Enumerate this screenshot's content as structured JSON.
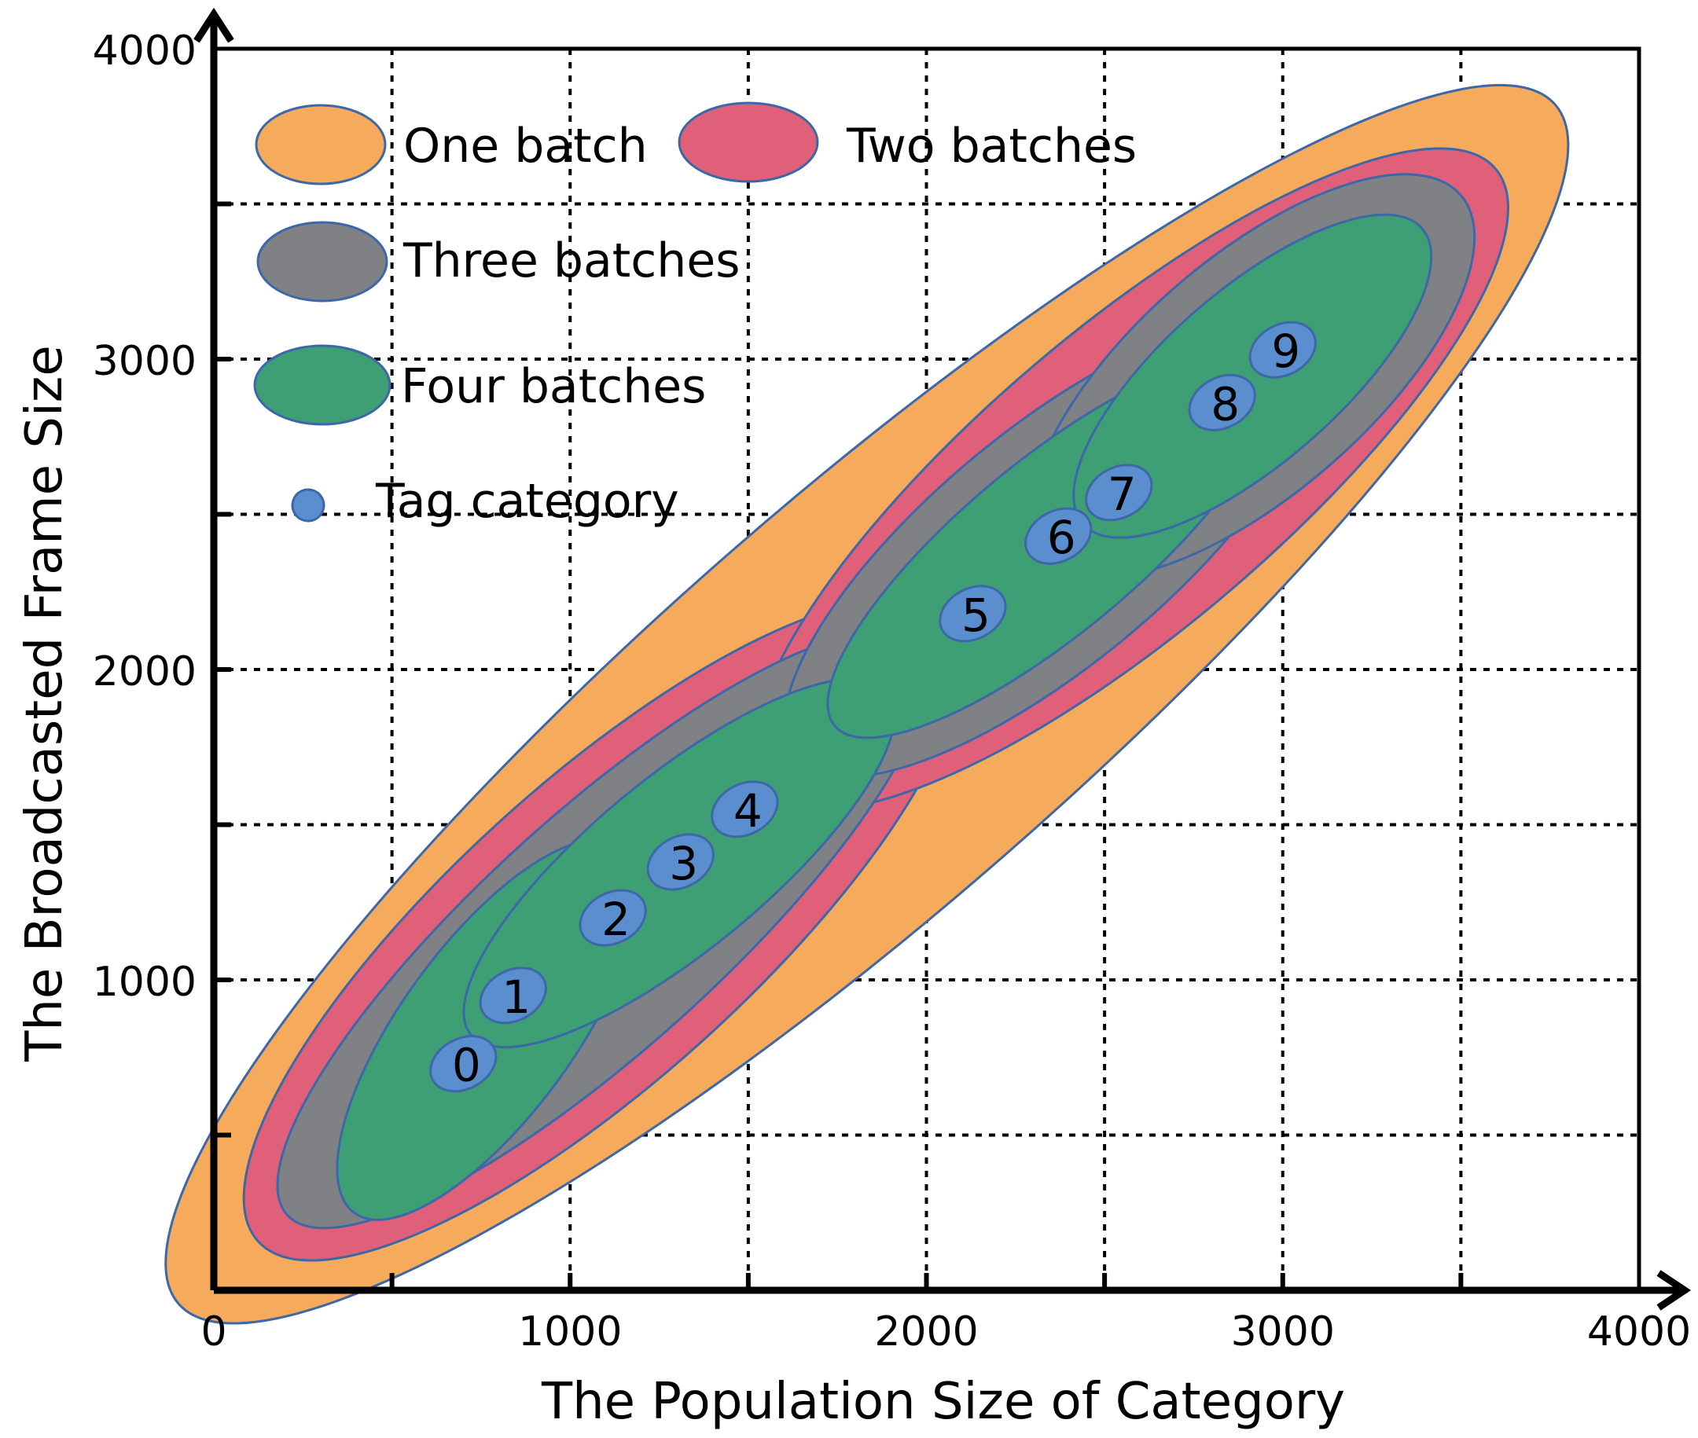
{
  "colors": {
    "one_batch": "#F5AB5B",
    "two_batches": "#E0607A",
    "three_batches": "#808184",
    "four_batches": "#3E9E74",
    "tag": "#5B8ECF",
    "outline": "#3C67A8"
  },
  "chart_data": {
    "type": "scatter",
    "title": "",
    "xlabel": "The Population Size of Category",
    "ylabel": "The Broadcasted Frame Size",
    "xlim": [
      0,
      4000
    ],
    "ylim": [
      0,
      4000
    ],
    "xticks": [
      0,
      1000,
      2000,
      3000,
      4000
    ],
    "yticks": [
      1000,
      2000,
      3000,
      4000
    ],
    "x_tick_labels": [
      "0",
      "1000",
      "2000",
      "3000",
      "4000"
    ],
    "y_tick_labels": [
      "1000",
      "2000",
      "3000",
      "4000"
    ],
    "grid": true,
    "legend": [
      {
        "key": "one_batch",
        "label": "One batch"
      },
      {
        "key": "two_batches",
        "label": "Two batches"
      },
      {
        "key": "three_batches",
        "label": "Three batches"
      },
      {
        "key": "four_batches",
        "label": "Four batches"
      },
      {
        "key": "tag",
        "label": "Tag category"
      }
    ],
    "tag_categories": [
      {
        "id": "0",
        "x": 700,
        "y": 730
      },
      {
        "id": "1",
        "x": 840,
        "y": 950
      },
      {
        "id": "2",
        "x": 1120,
        "y": 1200
      },
      {
        "id": "3",
        "x": 1310,
        "y": 1380
      },
      {
        "id": "4",
        "x": 1490,
        "y": 1550
      },
      {
        "id": "5",
        "x": 2130,
        "y": 2180
      },
      {
        "id": "6",
        "x": 2370,
        "y": 2430
      },
      {
        "id": "7",
        "x": 2540,
        "y": 2570
      },
      {
        "id": "8",
        "x": 2830,
        "y": 2860
      },
      {
        "id": "9",
        "x": 3000,
        "y": 3030
      }
    ],
    "batch_groups": [
      {
        "level": "one_batch",
        "members": [
          "0",
          "1",
          "2",
          "3",
          "4",
          "5",
          "6",
          "7",
          "8",
          "9"
        ]
      },
      {
        "level": "two_batches",
        "members": [
          "0",
          "1",
          "2",
          "3",
          "4"
        ]
      },
      {
        "level": "two_batches",
        "members": [
          "5",
          "6",
          "7",
          "8",
          "9"
        ]
      },
      {
        "level": "three_batches",
        "members": [
          "0",
          "1",
          "2",
          "3",
          "4"
        ]
      },
      {
        "level": "three_batches",
        "members": [
          "5",
          "6",
          "7"
        ]
      },
      {
        "level": "three_batches",
        "members": [
          "8",
          "9"
        ]
      },
      {
        "level": "four_batches",
        "members": [
          "0",
          "1"
        ]
      },
      {
        "level": "four_batches",
        "members": [
          "2",
          "3",
          "4"
        ]
      },
      {
        "level": "four_batches",
        "members": [
          "5",
          "6",
          "7"
        ]
      },
      {
        "level": "four_batches",
        "members": [
          "8",
          "9"
        ]
      }
    ]
  }
}
